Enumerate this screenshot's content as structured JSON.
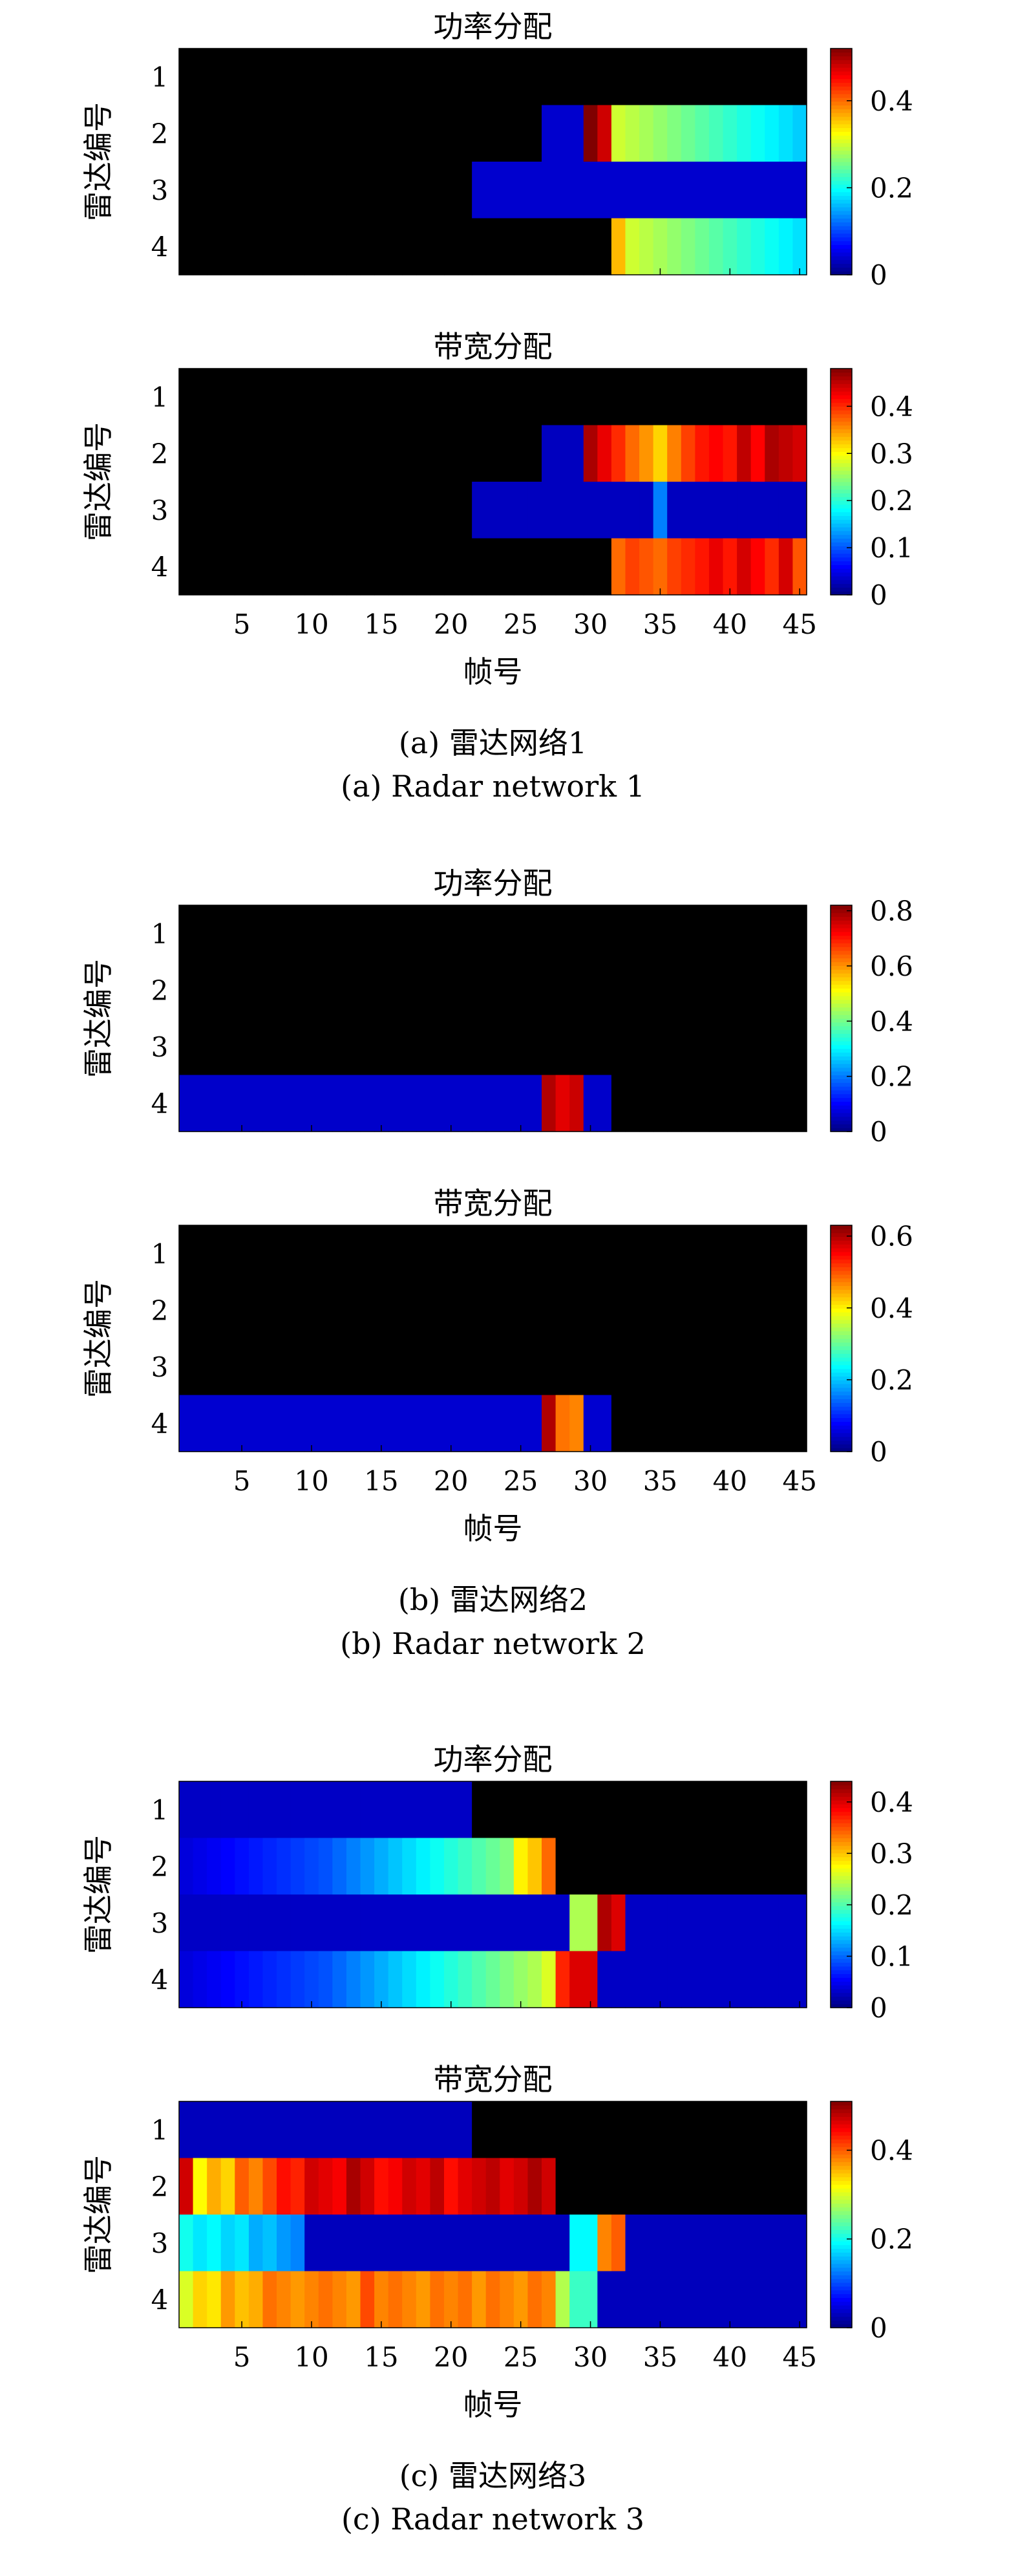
{
  "figure": {
    "x_ticks": [
      5,
      10,
      15,
      20,
      25,
      30,
      35,
      40,
      45
    ],
    "x_label": "帧号",
    "y_label": "雷达编号",
    "y_ticks": [
      "1",
      "2",
      "3",
      "4"
    ]
  },
  "subfigures": [
    {
      "caption_cn": "(a) 雷达网络1",
      "caption_en": "(a) Radar network 1"
    },
    {
      "caption_cn": "(b) 雷达网络2",
      "caption_en": "(b) Radar network 2"
    },
    {
      "caption_cn": "(c) 雷达网络3",
      "caption_en": "(c) Radar network 3"
    }
  ],
  "chart_data": [
    {
      "type": "heatmap",
      "group": "a",
      "title": "功率分配",
      "x_range": [
        1,
        45
      ],
      "rows": [
        "1",
        "2",
        "3",
        "4"
      ],
      "colorbar": {
        "min": 0,
        "max": 0.52,
        "ticks": [
          0,
          0.2,
          0.4
        ],
        "tick_labels": [
          "0",
          "0.2",
          "0.4"
        ]
      },
      "matrix": [
        [
          0,
          0,
          0,
          0,
          0,
          0,
          0,
          0,
          0,
          0,
          0,
          0,
          0,
          0,
          0,
          0,
          0,
          0,
          0,
          0,
          0,
          0,
          0,
          0,
          0,
          0,
          0,
          0,
          0,
          0,
          0,
          0,
          0,
          0,
          0,
          0,
          0,
          0,
          0,
          0,
          0,
          0,
          0,
          0,
          0
        ],
        [
          0,
          0,
          0,
          0,
          0,
          0,
          0,
          0,
          0,
          0,
          0,
          0,
          0,
          0,
          0,
          0,
          0,
          0,
          0,
          0,
          0,
          0,
          0,
          0,
          0,
          0,
          0.04,
          0.04,
          0.04,
          0.52,
          0.48,
          0.3,
          0.29,
          0.28,
          0.27,
          0.26,
          0.25,
          0.24,
          0.23,
          0.22,
          0.21,
          0.2,
          0.19,
          0.18,
          0.17
        ],
        [
          0,
          0,
          0,
          0,
          0,
          0,
          0,
          0,
          0,
          0,
          0,
          0,
          0,
          0,
          0,
          0,
          0,
          0,
          0,
          0,
          0,
          0.04,
          0.04,
          0.04,
          0.04,
          0.04,
          0.04,
          0.04,
          0.04,
          0.04,
          0.04,
          0.04,
          0.04,
          0.04,
          0.04,
          0.04,
          0.04,
          0.04,
          0.04,
          0.04,
          0.04,
          0.04,
          0.04,
          0.04,
          0.04
        ],
        [
          0,
          0,
          0,
          0,
          0,
          0,
          0,
          0,
          0,
          0,
          0,
          0,
          0,
          0,
          0,
          0,
          0,
          0,
          0,
          0,
          0,
          0,
          0,
          0,
          0,
          0,
          0,
          0,
          0,
          0,
          0,
          0.36,
          0.3,
          0.29,
          0.28,
          0.27,
          0.26,
          0.25,
          0.24,
          0.23,
          0.22,
          0.21,
          0.2,
          0.19,
          0.18
        ]
      ]
    },
    {
      "type": "heatmap",
      "group": "a",
      "title": "带宽分配",
      "x_range": [
        1,
        45
      ],
      "rows": [
        "1",
        "2",
        "3",
        "4"
      ],
      "colorbar": {
        "min": 0,
        "max": 0.48,
        "ticks": [
          0,
          0.1,
          0.2,
          0.3,
          0.4
        ],
        "tick_labels": [
          "0",
          "0.1",
          "0.2",
          "0.3",
          "0.4"
        ]
      },
      "matrix": [
        [
          0,
          0,
          0,
          0,
          0,
          0,
          0,
          0,
          0,
          0,
          0,
          0,
          0,
          0,
          0,
          0,
          0,
          0,
          0,
          0,
          0,
          0,
          0,
          0,
          0,
          0,
          0,
          0,
          0,
          0,
          0,
          0,
          0,
          0,
          0,
          0,
          0,
          0,
          0,
          0,
          0,
          0,
          0,
          0,
          0
        ],
        [
          0,
          0,
          0,
          0,
          0,
          0,
          0,
          0,
          0,
          0,
          0,
          0,
          0,
          0,
          0,
          0,
          0,
          0,
          0,
          0,
          0,
          0,
          0,
          0,
          0,
          0,
          0.03,
          0.03,
          0.03,
          0.46,
          0.43,
          0.4,
          0.37,
          0.35,
          0.32,
          0.36,
          0.39,
          0.41,
          0.42,
          0.41,
          0.45,
          0.42,
          0.46,
          0.45,
          0.44
        ],
        [
          0,
          0,
          0,
          0,
          0,
          0,
          0,
          0,
          0,
          0,
          0,
          0,
          0,
          0,
          0,
          0,
          0,
          0,
          0,
          0,
          0,
          0.03,
          0.03,
          0.03,
          0.03,
          0.03,
          0.03,
          0.03,
          0.03,
          0.03,
          0.03,
          0.03,
          0.03,
          0.03,
          0.12,
          0.03,
          0.03,
          0.03,
          0.03,
          0.03,
          0.03,
          0.03,
          0.03,
          0.03,
          0.03
        ],
        [
          0,
          0,
          0,
          0,
          0,
          0,
          0,
          0,
          0,
          0,
          0,
          0,
          0,
          0,
          0,
          0,
          0,
          0,
          0,
          0,
          0,
          0,
          0,
          0,
          0,
          0,
          0,
          0,
          0,
          0,
          0,
          0.37,
          0.39,
          0.38,
          0.37,
          0.39,
          0.4,
          0.41,
          0.43,
          0.41,
          0.44,
          0.42,
          0.4,
          0.44,
          0.38
        ]
      ]
    },
    {
      "type": "heatmap",
      "group": "b",
      "title": "功率分配",
      "x_range": [
        1,
        45
      ],
      "rows": [
        "1",
        "2",
        "3",
        "4"
      ],
      "colorbar": {
        "min": 0,
        "max": 0.82,
        "ticks": [
          0,
          0.2,
          0.4,
          0.6,
          0.8
        ],
        "tick_labels": [
          "0",
          "0.2",
          "0.4",
          "0.6",
          "0.8"
        ]
      },
      "matrix": [
        [
          0,
          0,
          0,
          0,
          0,
          0,
          0,
          0,
          0,
          0,
          0,
          0,
          0,
          0,
          0,
          0,
          0,
          0,
          0,
          0,
          0,
          0,
          0,
          0,
          0,
          0,
          0,
          0,
          0,
          0,
          0,
          0,
          0,
          0,
          0,
          0,
          0,
          0,
          0,
          0,
          0,
          0,
          0,
          0,
          0
        ],
        [
          0,
          0,
          0,
          0,
          0,
          0,
          0,
          0,
          0,
          0,
          0,
          0,
          0,
          0,
          0,
          0,
          0,
          0,
          0,
          0,
          0,
          0,
          0,
          0,
          0,
          0,
          0,
          0,
          0,
          0,
          0,
          0,
          0,
          0,
          0,
          0,
          0,
          0,
          0,
          0,
          0,
          0,
          0,
          0,
          0
        ],
        [
          0,
          0,
          0,
          0,
          0,
          0,
          0,
          0,
          0,
          0,
          0,
          0,
          0,
          0,
          0,
          0,
          0,
          0,
          0,
          0,
          0,
          0,
          0,
          0,
          0,
          0,
          0,
          0,
          0,
          0,
          0,
          0,
          0,
          0,
          0,
          0,
          0,
          0,
          0,
          0,
          0,
          0,
          0,
          0,
          0
        ],
        [
          0.06,
          0.06,
          0.06,
          0.06,
          0.06,
          0.06,
          0.06,
          0.06,
          0.06,
          0.06,
          0.06,
          0.06,
          0.06,
          0.06,
          0.06,
          0.06,
          0.06,
          0.06,
          0.06,
          0.06,
          0.06,
          0.06,
          0.06,
          0.06,
          0.06,
          0.06,
          0.78,
          0.74,
          0.76,
          0.06,
          0.06,
          0,
          0,
          0,
          0,
          0,
          0,
          0,
          0,
          0,
          0,
          0,
          0,
          0,
          0
        ]
      ]
    },
    {
      "type": "heatmap",
      "group": "b",
      "title": "带宽分配",
      "x_range": [
        1,
        45
      ],
      "rows": [
        "1",
        "2",
        "3",
        "4"
      ],
      "colorbar": {
        "min": 0,
        "max": 0.63,
        "ticks": [
          0,
          0.2,
          0.4,
          0.6
        ],
        "tick_labels": [
          "0",
          "0.2",
          "0.4",
          "0.6"
        ]
      },
      "matrix": [
        [
          0,
          0,
          0,
          0,
          0,
          0,
          0,
          0,
          0,
          0,
          0,
          0,
          0,
          0,
          0,
          0,
          0,
          0,
          0,
          0,
          0,
          0,
          0,
          0,
          0,
          0,
          0,
          0,
          0,
          0,
          0,
          0,
          0,
          0,
          0,
          0,
          0,
          0,
          0,
          0,
          0,
          0,
          0,
          0,
          0
        ],
        [
          0,
          0,
          0,
          0,
          0,
          0,
          0,
          0,
          0,
          0,
          0,
          0,
          0,
          0,
          0,
          0,
          0,
          0,
          0,
          0,
          0,
          0,
          0,
          0,
          0,
          0,
          0,
          0,
          0,
          0,
          0,
          0,
          0,
          0,
          0,
          0,
          0,
          0,
          0,
          0,
          0,
          0,
          0,
          0,
          0
        ],
        [
          0,
          0,
          0,
          0,
          0,
          0,
          0,
          0,
          0,
          0,
          0,
          0,
          0,
          0,
          0,
          0,
          0,
          0,
          0,
          0,
          0,
          0,
          0,
          0,
          0,
          0,
          0,
          0,
          0,
          0,
          0,
          0,
          0,
          0,
          0,
          0,
          0,
          0,
          0,
          0,
          0,
          0,
          0,
          0,
          0
        ],
        [
          0.05,
          0.05,
          0.05,
          0.05,
          0.05,
          0.05,
          0.05,
          0.05,
          0.05,
          0.05,
          0.05,
          0.05,
          0.05,
          0.05,
          0.05,
          0.05,
          0.05,
          0.05,
          0.05,
          0.05,
          0.05,
          0.05,
          0.05,
          0.05,
          0.05,
          0.05,
          0.6,
          0.48,
          0.47,
          0.05,
          0.05,
          0,
          0,
          0,
          0,
          0,
          0,
          0,
          0,
          0,
          0,
          0,
          0,
          0,
          0
        ]
      ]
    },
    {
      "type": "heatmap",
      "group": "c",
      "title": "功率分配",
      "x_range": [
        1,
        45
      ],
      "rows": [
        "1",
        "2",
        "3",
        "4"
      ],
      "colorbar": {
        "min": 0,
        "max": 0.44,
        "ticks": [
          0,
          0.1,
          0.2,
          0.3,
          0.4
        ],
        "tick_labels": [
          "0",
          "0.1",
          "0.2",
          "0.3",
          "0.4"
        ]
      },
      "matrix": [
        [
          0.03,
          0.03,
          0.03,
          0.03,
          0.03,
          0.03,
          0.03,
          0.03,
          0.03,
          0.03,
          0.03,
          0.03,
          0.03,
          0.03,
          0.03,
          0.03,
          0.03,
          0.03,
          0.03,
          0.03,
          0.03,
          0,
          0,
          0,
          0,
          0,
          0,
          0,
          0,
          0,
          0,
          0,
          0,
          0,
          0,
          0,
          0,
          0,
          0,
          0,
          0,
          0,
          0,
          0,
          0
        ],
        [
          0.04,
          0.045,
          0.05,
          0.055,
          0.06,
          0.065,
          0.07,
          0.075,
          0.08,
          0.085,
          0.09,
          0.1,
          0.11,
          0.12,
          0.13,
          0.14,
          0.15,
          0.16,
          0.17,
          0.18,
          0.19,
          0.2,
          0.21,
          0.22,
          0.28,
          0.3,
          0.34,
          0,
          0,
          0,
          0,
          0,
          0,
          0,
          0,
          0,
          0,
          0,
          0,
          0,
          0,
          0,
          0,
          0,
          0
        ],
        [
          0.03,
          0.03,
          0.03,
          0.03,
          0.03,
          0.03,
          0.03,
          0.03,
          0.03,
          0.03,
          0.03,
          0.03,
          0.03,
          0.03,
          0.03,
          0.03,
          0.03,
          0.03,
          0.03,
          0.03,
          0.03,
          0.03,
          0.03,
          0.03,
          0.03,
          0.03,
          0.03,
          0.03,
          0.24,
          0.24,
          0.42,
          0.4,
          0.03,
          0.03,
          0.03,
          0.03,
          0.03,
          0.03,
          0.03,
          0.03,
          0.03,
          0.03,
          0.03,
          0.03,
          0.03
        ],
        [
          0.04,
          0.045,
          0.05,
          0.055,
          0.06,
          0.065,
          0.07,
          0.075,
          0.08,
          0.085,
          0.09,
          0.1,
          0.11,
          0.12,
          0.13,
          0.14,
          0.15,
          0.16,
          0.17,
          0.18,
          0.19,
          0.2,
          0.21,
          0.22,
          0.23,
          0.24,
          0.26,
          0.37,
          0.4,
          0.4,
          0.03,
          0.03,
          0.03,
          0.03,
          0.03,
          0.03,
          0.03,
          0.03,
          0.03,
          0.03,
          0.03,
          0.03,
          0.03,
          0.03,
          0.03
        ]
      ]
    },
    {
      "type": "heatmap",
      "group": "c",
      "title": "带宽分配",
      "x_range": [
        1,
        45
      ],
      "rows": [
        "1",
        "2",
        "3",
        "4"
      ],
      "colorbar": {
        "min": 0,
        "max": 0.51,
        "ticks": [
          0,
          0.2,
          0.4
        ],
        "tick_labels": [
          "0",
          "0.2",
          "0.4"
        ]
      },
      "matrix": [
        [
          0.03,
          0.03,
          0.03,
          0.03,
          0.03,
          0.03,
          0.03,
          0.03,
          0.03,
          0.03,
          0.03,
          0.03,
          0.03,
          0.03,
          0.03,
          0.03,
          0.03,
          0.03,
          0.03,
          0.03,
          0.03,
          0,
          0,
          0,
          0,
          0,
          0,
          0,
          0,
          0,
          0,
          0,
          0,
          0,
          0,
          0,
          0,
          0,
          0,
          0,
          0,
          0,
          0,
          0,
          0
        ],
        [
          0.47,
          0.32,
          0.36,
          0.34,
          0.4,
          0.38,
          0.41,
          0.44,
          0.43,
          0.47,
          0.46,
          0.45,
          0.49,
          0.47,
          0.44,
          0.45,
          0.47,
          0.46,
          0.48,
          0.44,
          0.46,
          0.47,
          0.48,
          0.46,
          0.47,
          0.49,
          0.47,
          0,
          0,
          0,
          0,
          0,
          0,
          0,
          0,
          0,
          0,
          0,
          0,
          0,
          0,
          0,
          0,
          0,
          0
        ],
        [
          0.2,
          0.18,
          0.19,
          0.17,
          0.18,
          0.15,
          0.16,
          0.14,
          0.13,
          0.03,
          0.03,
          0.03,
          0.03,
          0.03,
          0.03,
          0.03,
          0.03,
          0.03,
          0.03,
          0.03,
          0.03,
          0.03,
          0.03,
          0.03,
          0.03,
          0.03,
          0.03,
          0.03,
          0.19,
          0.19,
          0.38,
          0.4,
          0.03,
          0.03,
          0.03,
          0.03,
          0.03,
          0.03,
          0.03,
          0.03,
          0.03,
          0.03,
          0.03,
          0.03,
          0.03
        ],
        [
          0.3,
          0.34,
          0.33,
          0.37,
          0.35,
          0.36,
          0.39,
          0.38,
          0.37,
          0.38,
          0.39,
          0.38,
          0.37,
          0.41,
          0.38,
          0.39,
          0.38,
          0.37,
          0.39,
          0.38,
          0.39,
          0.37,
          0.39,
          0.38,
          0.37,
          0.39,
          0.38,
          0.28,
          0.22,
          0.22,
          0.03,
          0.03,
          0.03,
          0.03,
          0.03,
          0.03,
          0.03,
          0.03,
          0.03,
          0.03,
          0.03,
          0.03,
          0.03,
          0.03,
          0.03
        ]
      ]
    }
  ]
}
